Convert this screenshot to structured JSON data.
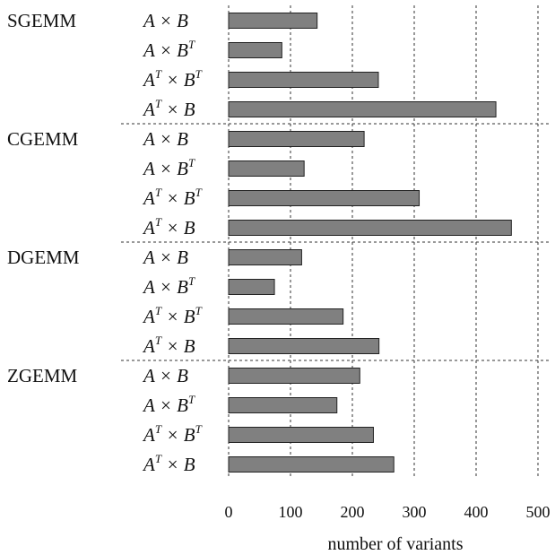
{
  "chart_data": {
    "type": "bar",
    "orientation": "horizontal",
    "xlabel": "number of variants",
    "xlim": [
      0,
      500
    ],
    "xticks": [
      "0",
      "100",
      "200",
      "300",
      "400",
      "500"
    ],
    "grid": "vertical dashed",
    "operations": [
      "A × B",
      "A × B^T",
      "A^T × B^T",
      "A^T × B"
    ],
    "groups": [
      {
        "name": "SGEMM",
        "values": [
          143,
          86,
          242,
          432
        ]
      },
      {
        "name": "CGEMM",
        "values": [
          219,
          122,
          308,
          457
        ]
      },
      {
        "name": "DGEMM",
        "values": [
          118,
          74,
          185,
          243
        ]
      },
      {
        "name": "ZGEMM",
        "values": [
          212,
          175,
          234,
          267
        ]
      }
    ]
  },
  "colors": {
    "bar_fill": "#808080",
    "bar_stroke": "#222222",
    "grid": "#333333"
  }
}
